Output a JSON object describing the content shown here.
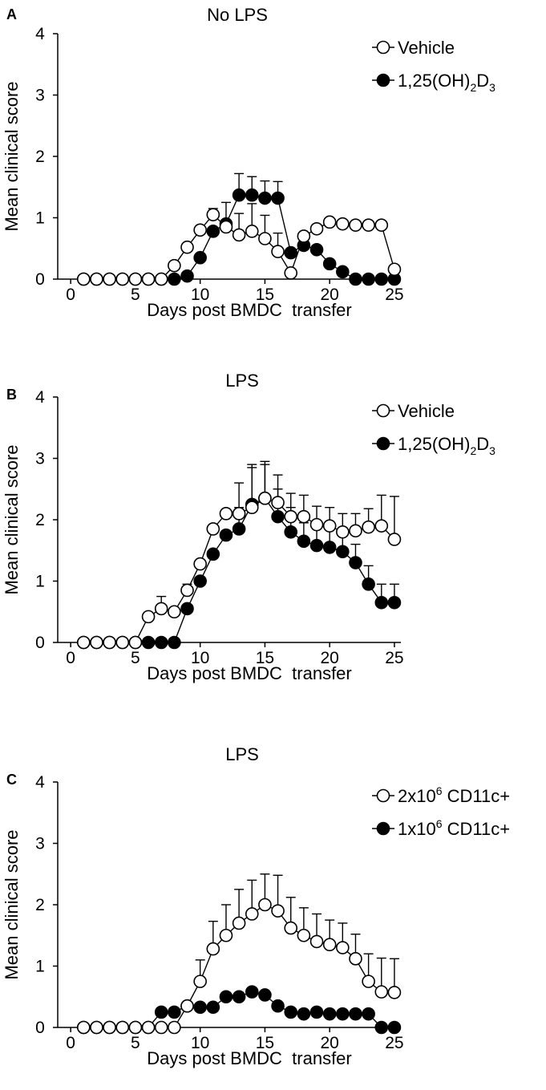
{
  "chart_data": [
    {
      "type": "line",
      "panel": "A",
      "title": "No LPS",
      "xlabel": "Days post BMDC  transfer",
      "ylabel": "Mean clinical score",
      "xlim": [
        -1,
        25.5
      ],
      "ylim": [
        0,
        4
      ],
      "xticks": [
        0,
        5,
        10,
        15,
        20,
        25
      ],
      "yticks": [
        0,
        1,
        2,
        3,
        4
      ],
      "grid": false,
      "legend_position": "top-right",
      "x": [
        1,
        2,
        3,
        4,
        5,
        6,
        7,
        8,
        9,
        10,
        11,
        12,
        13,
        14,
        15,
        16,
        17,
        18,
        19,
        20,
        21,
        22,
        23,
        24,
        25
      ],
      "series": [
        {
          "name": "Vehicle",
          "marker": "open-circle",
          "legend_main": "Vehicle",
          "legend_sup": "",
          "legend_tail": "",
          "values": [
            0,
            0,
            0,
            0,
            0,
            0,
            0,
            0.22,
            0.52,
            0.8,
            1.05,
            0.85,
            0.72,
            0.78,
            0.66,
            0.45,
            0.1,
            0.7,
            0.82,
            0.93,
            0.9,
            0.88,
            0.88,
            0.88,
            0.16
          ],
          "err": [
            0,
            0,
            0,
            0,
            0,
            0,
            0,
            0,
            0,
            0,
            0.1,
            0.4,
            0.35,
            0.45,
            0.38,
            0.3,
            0,
            0,
            0,
            0,
            0,
            0,
            0,
            0,
            0
          ]
        },
        {
          "name": "1,25(OH)2D3",
          "marker": "filled-circle",
          "legend_main": "1,25(OH)",
          "legend_sub1": "2",
          "legend_mid": "D",
          "legend_sub2": "3",
          "values": [
            0,
            0,
            0,
            0,
            0,
            0,
            0,
            0,
            0.05,
            0.35,
            0.78,
            0.9,
            1.37,
            1.37,
            1.32,
            1.32,
            0.43,
            0.55,
            0.48,
            0.25,
            0.12,
            0,
            0,
            0,
            0
          ],
          "err": [
            0,
            0,
            0,
            0,
            0,
            0,
            0,
            0,
            0,
            0,
            0,
            0,
            0.35,
            0.3,
            0.28,
            0.27,
            0,
            0,
            0,
            0,
            0,
            0,
            0,
            0,
            0
          ]
        }
      ]
    },
    {
      "type": "line",
      "panel": "B",
      "title": "LPS",
      "xlabel": "Days post BMDC  transfer",
      "ylabel": "Mean clinical score",
      "xlim": [
        -1,
        25.5
      ],
      "ylim": [
        0,
        4
      ],
      "xticks": [
        0,
        5,
        10,
        15,
        20,
        25
      ],
      "yticks": [
        0,
        1,
        2,
        3,
        4
      ],
      "grid": false,
      "legend_position": "top-right",
      "x": [
        1,
        2,
        3,
        4,
        5,
        6,
        7,
        8,
        9,
        10,
        11,
        12,
        13,
        14,
        15,
        16,
        17,
        18,
        19,
        20,
        21,
        22,
        23,
        24,
        25
      ],
      "series": [
        {
          "name": "Vehicle",
          "marker": "open-circle",
          "legend_main": "Vehicle",
          "values": [
            0,
            0,
            0,
            0,
            0,
            0.42,
            0.55,
            0.5,
            0.85,
            1.28,
            1.85,
            2.1,
            2.1,
            2.2,
            2.35,
            2.28,
            2.05,
            2.05,
            1.92,
            1.9,
            1.8,
            1.82,
            1.88,
            1.9,
            1.68
          ],
          "err": [
            0,
            0,
            0,
            0,
            0,
            0,
            0.2,
            0,
            0.1,
            0,
            0,
            0,
            0.5,
            0.7,
            0.55,
            0.45,
            0.38,
            0.35,
            0.3,
            0.3,
            0.3,
            0.28,
            0.3,
            0.5,
            0.7
          ]
        },
        {
          "name": "1,25(OH)2D3",
          "marker": "filled-circle",
          "legend_main": "1,25(OH)",
          "legend_sub1": "2",
          "legend_mid": "D",
          "legend_sub2": "3",
          "values": [
            0,
            0,
            0,
            0,
            0,
            0,
            0,
            0,
            0.55,
            1.0,
            1.44,
            1.75,
            1.85,
            2.25,
            2.35,
            2.05,
            1.8,
            1.65,
            1.58,
            1.55,
            1.48,
            1.3,
            0.95,
            0.65,
            0.65
          ],
          "err": [
            0,
            0,
            0,
            0,
            0,
            0,
            0,
            0,
            0,
            0,
            0,
            0,
            0.35,
            0.6,
            0.6,
            0.45,
            0.4,
            0.3,
            0.3,
            0.3,
            0.3,
            0.3,
            0.3,
            0.3,
            0.3
          ]
        }
      ]
    },
    {
      "type": "line",
      "panel": "C",
      "title": "LPS",
      "xlabel": "Days post BMDC  transfer",
      "ylabel": "Mean clinical score",
      "xlim": [
        -1,
        25.5
      ],
      "ylim": [
        0,
        4
      ],
      "xticks": [
        0,
        5,
        10,
        15,
        20,
        25
      ],
      "yticks": [
        0,
        1,
        2,
        3,
        4
      ],
      "grid": false,
      "legend_position": "top-right",
      "x": [
        1,
        2,
        3,
        4,
        5,
        6,
        7,
        8,
        9,
        10,
        11,
        12,
        13,
        14,
        15,
        16,
        17,
        18,
        19,
        20,
        21,
        22,
        23,
        24,
        25
      ],
      "series": [
        {
          "name": "2x106 CD11c+",
          "marker": "open-circle",
          "legend_main": "2x10",
          "legend_sup": "6",
          "legend_tail": " CD11c+",
          "values": [
            0,
            0,
            0,
            0,
            0,
            0,
            0,
            0,
            0.35,
            0.75,
            1.28,
            1.5,
            1.7,
            1.85,
            2.0,
            1.9,
            1.62,
            1.5,
            1.4,
            1.35,
            1.3,
            1.12,
            0.75,
            0.58,
            0.57
          ],
          "err": [
            0,
            0,
            0,
            0,
            0,
            0,
            0,
            0,
            0,
            0.35,
            0.45,
            0.5,
            0.55,
            0.55,
            0.5,
            0.58,
            0.5,
            0.45,
            0.45,
            0.4,
            0.4,
            0.4,
            0.45,
            0.55,
            0.55
          ]
        },
        {
          "name": "1x106 CD11c+",
          "marker": "filled-circle",
          "legend_main": "1x10",
          "legend_sup": "6",
          "legend_tail": " CD11c+",
          "values": [
            0,
            0,
            0,
            0,
            0,
            0,
            0.25,
            0.25,
            0.35,
            0.33,
            0.33,
            0.5,
            0.5,
            0.58,
            0.53,
            0.35,
            0.25,
            0.22,
            0.25,
            0.22,
            0.22,
            0.22,
            0.22,
            0,
            0
          ],
          "err": [
            0,
            0,
            0,
            0,
            0,
            0,
            0,
            0,
            0,
            0,
            0,
            0,
            0,
            0,
            0,
            0,
            0,
            0,
            0,
            0,
            0,
            0,
            0,
            0,
            0
          ]
        }
      ]
    }
  ]
}
